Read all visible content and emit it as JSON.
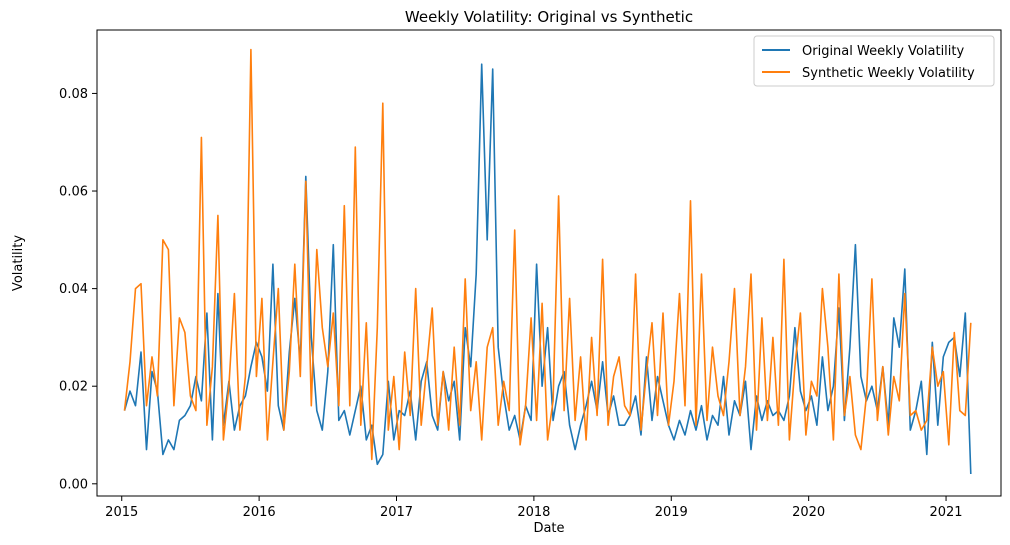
{
  "chart_data": {
    "type": "line",
    "title": "Weekly Volatility: Original vs Synthetic",
    "xlabel": "Date",
    "ylabel": "Volatility",
    "xlim": [
      2014.82,
      2021.4
    ],
    "ylim": [
      -0.0025,
      0.093
    ],
    "x_ticks": [
      {
        "value": 2015,
        "label": "2015"
      },
      {
        "value": 2016,
        "label": "2016"
      },
      {
        "value": 2017,
        "label": "2017"
      },
      {
        "value": 2018,
        "label": "2018"
      },
      {
        "value": 2019,
        "label": "2019"
      },
      {
        "value": 2020,
        "label": "2020"
      },
      {
        "value": 2021,
        "label": "2021"
      }
    ],
    "y_ticks": [
      {
        "value": 0.0,
        "label": "0.00"
      },
      {
        "value": 0.02,
        "label": "0.02"
      },
      {
        "value": 0.04,
        "label": "0.04"
      },
      {
        "value": 0.06,
        "label": "0.06"
      },
      {
        "value": 0.08,
        "label": "0.08"
      }
    ],
    "grid": false,
    "legend_position": "top-right",
    "series": [
      {
        "name": "Original Weekly Volatility",
        "color": "#1f77b4",
        "x": [
          2015.02,
          2015.06,
          2015.1,
          2015.14,
          2015.18,
          2015.22,
          2015.26,
          2015.3,
          2015.34,
          2015.38,
          2015.42,
          2015.46,
          2015.5,
          2015.54,
          2015.58,
          2015.62,
          2015.66,
          2015.7,
          2015.74,
          2015.78,
          2015.82,
          2015.86,
          2015.9,
          2015.94,
          2015.98,
          2016.02,
          2016.06,
          2016.1,
          2016.14,
          2016.18,
          2016.22,
          2016.26,
          2016.3,
          2016.34,
          2016.38,
          2016.42,
          2016.46,
          2016.5,
          2016.54,
          2016.58,
          2016.62,
          2016.66,
          2016.7,
          2016.74,
          2016.78,
          2016.82,
          2016.86,
          2016.9,
          2016.94,
          2016.98,
          2017.02,
          2017.06,
          2017.1,
          2017.14,
          2017.18,
          2017.22,
          2017.26,
          2017.3,
          2017.34,
          2017.38,
          2017.42,
          2017.46,
          2017.5,
          2017.54,
          2017.58,
          2017.62,
          2017.66,
          2017.7,
          2017.74,
          2017.78,
          2017.82,
          2017.86,
          2017.9,
          2017.94,
          2017.98,
          2018.02,
          2018.06,
          2018.1,
          2018.14,
          2018.18,
          2018.22,
          2018.26,
          2018.3,
          2018.34,
          2018.38,
          2018.42,
          2018.46,
          2018.5,
          2018.54,
          2018.58,
          2018.62,
          2018.66,
          2018.7,
          2018.74,
          2018.78,
          2018.82,
          2018.86,
          2018.9,
          2018.94,
          2018.98,
          2019.02,
          2019.06,
          2019.1,
          2019.14,
          2019.18,
          2019.22,
          2019.26,
          2019.3,
          2019.34,
          2019.38,
          2019.42,
          2019.46,
          2019.5,
          2019.54,
          2019.58,
          2019.62,
          2019.66,
          2019.7,
          2019.74,
          2019.78,
          2019.82,
          2019.86,
          2019.9,
          2019.94,
          2019.98,
          2020.02,
          2020.06,
          2020.1,
          2020.14,
          2020.18,
          2020.22,
          2020.26,
          2020.3,
          2020.34,
          2020.38,
          2020.42,
          2020.46,
          2020.5,
          2020.54,
          2020.58,
          2020.62,
          2020.66,
          2020.7,
          2020.74,
          2020.78,
          2020.82,
          2020.86,
          2020.9,
          2020.94,
          2020.98,
          2021.02,
          2021.06,
          2021.1,
          2021.14,
          2021.18
        ],
        "values": [
          0.015,
          0.019,
          0.016,
          0.027,
          0.007,
          0.023,
          0.019,
          0.006,
          0.009,
          0.007,
          0.013,
          0.014,
          0.016,
          0.022,
          0.017,
          0.035,
          0.009,
          0.039,
          0.012,
          0.021,
          0.011,
          0.016,
          0.018,
          0.024,
          0.029,
          0.026,
          0.019,
          0.045,
          0.016,
          0.011,
          0.027,
          0.038,
          0.025,
          0.063,
          0.03,
          0.015,
          0.011,
          0.023,
          0.049,
          0.013,
          0.015,
          0.01,
          0.015,
          0.02,
          0.009,
          0.012,
          0.004,
          0.006,
          0.021,
          0.009,
          0.015,
          0.014,
          0.019,
          0.009,
          0.021,
          0.025,
          0.014,
          0.011,
          0.023,
          0.017,
          0.021,
          0.009,
          0.032,
          0.024,
          0.043,
          0.086,
          0.05,
          0.085,
          0.028,
          0.018,
          0.011,
          0.014,
          0.009,
          0.016,
          0.013,
          0.045,
          0.02,
          0.032,
          0.013,
          0.02,
          0.023,
          0.012,
          0.007,
          0.012,
          0.016,
          0.021,
          0.015,
          0.025,
          0.014,
          0.018,
          0.012,
          0.012,
          0.014,
          0.018,
          0.01,
          0.026,
          0.013,
          0.022,
          0.017,
          0.012,
          0.009,
          0.013,
          0.01,
          0.015,
          0.011,
          0.016,
          0.009,
          0.014,
          0.012,
          0.022,
          0.01,
          0.017,
          0.014,
          0.021,
          0.007,
          0.018,
          0.013,
          0.017,
          0.014,
          0.015,
          0.013,
          0.018,
          0.032,
          0.019,
          0.015,
          0.018,
          0.012,
          0.026,
          0.015,
          0.02,
          0.036,
          0.013,
          0.028,
          0.049,
          0.022,
          0.017,
          0.02,
          0.015,
          0.024,
          0.012,
          0.034,
          0.028,
          0.044,
          0.011,
          0.015,
          0.021,
          0.006,
          0.029,
          0.012,
          0.026,
          0.029,
          0.03,
          0.022,
          0.035,
          0.002
        ]
      },
      {
        "name": "Synthetic Weekly Volatility",
        "color": "#ff7f0e",
        "x": [
          2015.02,
          2015.06,
          2015.1,
          2015.14,
          2015.18,
          2015.22,
          2015.26,
          2015.3,
          2015.34,
          2015.38,
          2015.42,
          2015.46,
          2015.5,
          2015.54,
          2015.58,
          2015.62,
          2015.66,
          2015.7,
          2015.74,
          2015.78,
          2015.82,
          2015.86,
          2015.9,
          2015.94,
          2015.98,
          2016.02,
          2016.06,
          2016.1,
          2016.14,
          2016.18,
          2016.22,
          2016.26,
          2016.3,
          2016.34,
          2016.38,
          2016.42,
          2016.46,
          2016.5,
          2016.54,
          2016.58,
          2016.62,
          2016.66,
          2016.7,
          2016.74,
          2016.78,
          2016.82,
          2016.86,
          2016.9,
          2016.94,
          2016.98,
          2017.02,
          2017.06,
          2017.1,
          2017.14,
          2017.18,
          2017.22,
          2017.26,
          2017.3,
          2017.34,
          2017.38,
          2017.42,
          2017.46,
          2017.5,
          2017.54,
          2017.58,
          2017.62,
          2017.66,
          2017.7,
          2017.74,
          2017.78,
          2017.82,
          2017.86,
          2017.9,
          2017.94,
          2017.98,
          2018.02,
          2018.06,
          2018.1,
          2018.14,
          2018.18,
          2018.22,
          2018.26,
          2018.3,
          2018.34,
          2018.38,
          2018.42,
          2018.46,
          2018.5,
          2018.54,
          2018.58,
          2018.62,
          2018.66,
          2018.7,
          2018.74,
          2018.78,
          2018.82,
          2018.86,
          2018.9,
          2018.94,
          2018.98,
          2019.02,
          2019.06,
          2019.1,
          2019.14,
          2019.18,
          2019.22,
          2019.26,
          2019.3,
          2019.34,
          2019.38,
          2019.42,
          2019.46,
          2019.5,
          2019.54,
          2019.58,
          2019.62,
          2019.66,
          2019.7,
          2019.74,
          2019.78,
          2019.82,
          2019.86,
          2019.9,
          2019.94,
          2019.98,
          2020.02,
          2020.06,
          2020.1,
          2020.14,
          2020.18,
          2020.22,
          2020.26,
          2020.3,
          2020.34,
          2020.38,
          2020.42,
          2020.46,
          2020.5,
          2020.54,
          2020.58,
          2020.62,
          2020.66,
          2020.7,
          2020.74,
          2020.78,
          2020.82,
          2020.86,
          2020.9,
          2020.94,
          2020.98,
          2021.02,
          2021.06,
          2021.1,
          2021.14,
          2021.18
        ],
        "values": [
          0.015,
          0.025,
          0.04,
          0.041,
          0.016,
          0.026,
          0.018,
          0.05,
          0.048,
          0.016,
          0.034,
          0.031,
          0.018,
          0.015,
          0.071,
          0.012,
          0.024,
          0.055,
          0.009,
          0.02,
          0.039,
          0.011,
          0.022,
          0.089,
          0.022,
          0.038,
          0.009,
          0.025,
          0.04,
          0.011,
          0.023,
          0.045,
          0.022,
          0.062,
          0.016,
          0.048,
          0.032,
          0.024,
          0.035,
          0.016,
          0.057,
          0.016,
          0.069,
          0.012,
          0.033,
          0.005,
          0.032,
          0.078,
          0.011,
          0.022,
          0.007,
          0.027,
          0.014,
          0.04,
          0.012,
          0.024,
          0.036,
          0.012,
          0.023,
          0.011,
          0.028,
          0.012,
          0.042,
          0.015,
          0.025,
          0.009,
          0.028,
          0.032,
          0.012,
          0.021,
          0.015,
          0.052,
          0.008,
          0.016,
          0.034,
          0.013,
          0.037,
          0.009,
          0.017,
          0.059,
          0.015,
          0.038,
          0.013,
          0.026,
          0.009,
          0.03,
          0.014,
          0.046,
          0.012,
          0.022,
          0.026,
          0.016,
          0.014,
          0.043,
          0.011,
          0.023,
          0.033,
          0.014,
          0.035,
          0.012,
          0.021,
          0.039,
          0.016,
          0.058,
          0.012,
          0.043,
          0.013,
          0.028,
          0.018,
          0.014,
          0.025,
          0.04,
          0.014,
          0.024,
          0.043,
          0.011,
          0.034,
          0.013,
          0.03,
          0.012,
          0.046,
          0.009,
          0.024,
          0.035,
          0.01,
          0.021,
          0.018,
          0.04,
          0.028,
          0.009,
          0.043,
          0.014,
          0.022,
          0.01,
          0.007,
          0.018,
          0.042,
          0.013,
          0.024,
          0.01,
          0.022,
          0.017,
          0.039,
          0.014,
          0.015,
          0.011,
          0.013,
          0.028,
          0.02,
          0.023,
          0.008,
          0.031,
          0.015,
          0.014,
          0.033
        ]
      }
    ]
  }
}
